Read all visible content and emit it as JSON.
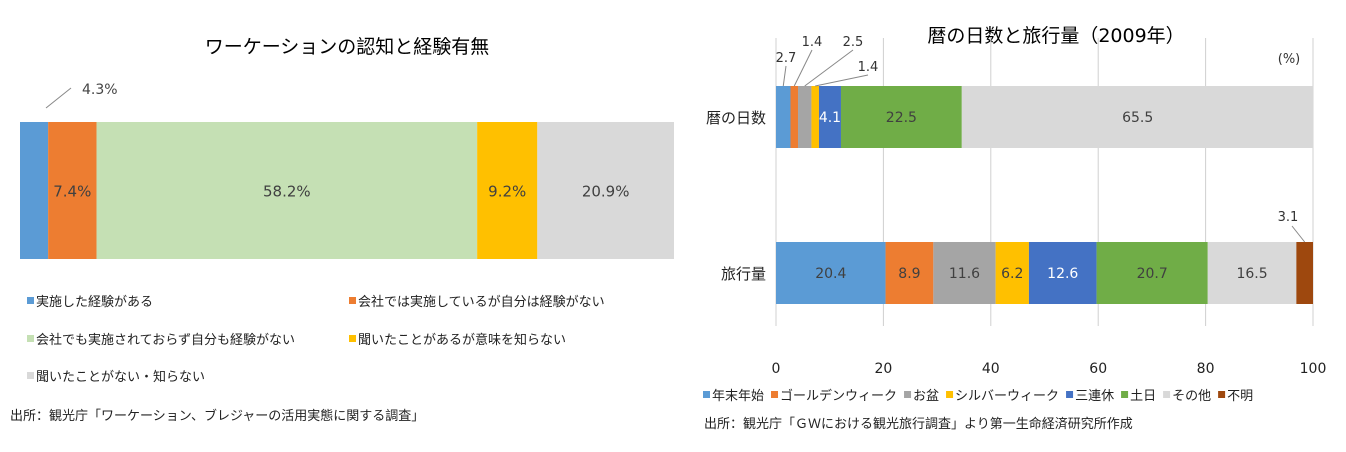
{
  "chart_data": [
    {
      "type": "bar",
      "orientation": "horizontal-stacked-100",
      "title": "ワーケーションの認知と経験有無",
      "series": [
        {
          "name": "実施した経験がある",
          "values": [
            4.3
          ],
          "label": "",
          "color": "#5b9bd5"
        },
        {
          "name": "会社では実施しているが自分は経験がない",
          "values": [
            7.4
          ],
          "label": "7.4%",
          "color": "#ed7d31"
        },
        {
          "name": "会社でも実施されておらず自分も経験がない",
          "values": [
            58.2
          ],
          "label": "58.2%",
          "color": "#c5e0b4"
        },
        {
          "name": "聞いたことがあるが意味を知らない",
          "values": [
            9.2
          ],
          "label": "9.2%",
          "color": "#ffc000"
        },
        {
          "name": "聞いたことがない・知らない",
          "values": [
            20.9
          ],
          "label": "20.9%",
          "color": "#d9d9d9"
        }
      ],
      "callout": "4.3%",
      "source": "出所：観光庁「ワーケーション、ブレジャーの活用実態に関する調査」"
    },
    {
      "type": "bar",
      "orientation": "horizontal-stacked",
      "title": "暦の日数と旅行量（2009年）",
      "unit_label": "(%)",
      "categories": [
        "暦の日数",
        "旅行量"
      ],
      "xlim": [
        0,
        100
      ],
      "xticks": [
        "0",
        "20",
        "40",
        "60",
        "80",
        "100"
      ],
      "grid": true,
      "legend_position": "bottom",
      "series": [
        {
          "name": "年末年始",
          "values": [
            2.7,
            20.4
          ],
          "color": "#5b9bd5"
        },
        {
          "name": "ゴールデンウィーク",
          "values": [
            1.4,
            8.9
          ],
          "color": "#ed7d31"
        },
        {
          "name": "お盆",
          "values": [
            2.5,
            11.6
          ],
          "color": "#a5a5a5"
        },
        {
          "name": "シルバーウィーク",
          "values": [
            1.4,
            6.2
          ],
          "color": "#ffc000"
        },
        {
          "name": "三連休",
          "values": [
            4.1,
            12.6
          ],
          "color": "#4472c4"
        },
        {
          "name": "土日",
          "values": [
            22.5,
            20.7
          ],
          "color": "#70ad47"
        },
        {
          "name": "その他",
          "values": [
            65.5,
            16.5
          ],
          "color": "#d9d9d9"
        },
        {
          "name": "不明",
          "values": [
            0,
            3.1
          ],
          "color": "#9e480e"
        }
      ],
      "small_labels": {
        "年末年始": "2.7",
        "ゴールデンウィーク": "1.4",
        "お盆": "2.5",
        "シルバーウィーク": "1.4",
        "不明": "3.1"
      },
      "source": "出所：観光庁「ＧＷにおける観光旅行調査」より第一生命経済研究所作成"
    }
  ]
}
